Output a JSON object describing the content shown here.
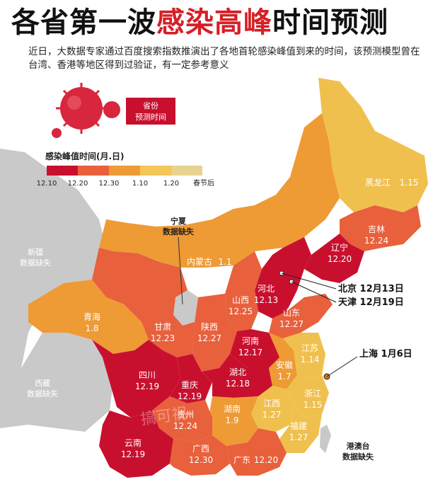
{
  "header": {
    "title_prefix": "各省第一波",
    "title_highlight": "感染高峰",
    "title_suffix": "时间预测",
    "subtitle": "近日，大数据专家通过百度搜索指数推演出了各地首轮感染峰值到来的时间，该预测模型曾在台湾、香港等地区得到过验证，有一定参考意义"
  },
  "badge": {
    "line1": "省份",
    "line2": "预测时间"
  },
  "legend": {
    "title": "感染峰值时间(月.日)",
    "ticks": [
      "12.10",
      "12.20",
      "12.30",
      "1.10",
      "1.20",
      "春节后"
    ],
    "colors": [
      "#c8102e",
      "#e8603c",
      "#ee9a35",
      "#f4c65a",
      "#e8d28f"
    ]
  },
  "provinces": {
    "heilongjiang": {
      "name": "黑龙江",
      "date": "1.15"
    },
    "jilin": {
      "name": "吉林",
      "date": "12.24"
    },
    "liaoning": {
      "name": "辽宁",
      "date": "12.20"
    },
    "neimenggu": {
      "name": "内蒙古",
      "date": "1.1"
    },
    "hebei": {
      "name": "河北",
      "date": "12.13"
    },
    "shanxi": {
      "name": "山西",
      "date": "12.25"
    },
    "shandong": {
      "name": "山东",
      "date": "12.27"
    },
    "henan": {
      "name": "河南",
      "date": "12.17"
    },
    "shaanxi": {
      "name": "陕西",
      "date": "12.27"
    },
    "gansu": {
      "name": "甘肃",
      "date": "12.23"
    },
    "qinghai": {
      "name": "青海",
      "date": "1.8"
    },
    "sichuan": {
      "name": "四川",
      "date": "12.19"
    },
    "chongqing": {
      "name": "重庆",
      "date": "12.19"
    },
    "hubei": {
      "name": "湖北",
      "date": "12.18"
    },
    "anhui": {
      "name": "安徽",
      "date": "1.7"
    },
    "jiangsu": {
      "name": "江苏",
      "date": "1.14"
    },
    "zhejiang": {
      "name": "浙江",
      "date": "1.15"
    },
    "jiangxi": {
      "name": "江西",
      "date": "1.27"
    },
    "hunan": {
      "name": "湖南",
      "date": "1.9"
    },
    "guizhou": {
      "name": "贵州",
      "date": "12.24"
    },
    "yunnan": {
      "name": "云南",
      "date": "12.19"
    },
    "guangxi": {
      "name": "广西",
      "date": "12.30"
    },
    "guangdong": {
      "name": "广东",
      "date": "12.20"
    },
    "fujian": {
      "name": "福建",
      "date": "1.27"
    }
  },
  "missing": {
    "ningxia": {
      "name": "宁夏",
      "note": "数据缺失"
    },
    "xinjiang": {
      "name": "新疆",
      "note": "数据缺失"
    },
    "xizang": {
      "name": "西藏",
      "note": "数据缺失"
    },
    "gangaotai": {
      "name": "港澳台",
      "note": "数据缺失"
    }
  },
  "callouts": {
    "beijing": "北京 12月13日",
    "tianjin": "天津 12月19日",
    "shanghai": "上海 1月6日"
  },
  "watermark": "搞可视"
}
